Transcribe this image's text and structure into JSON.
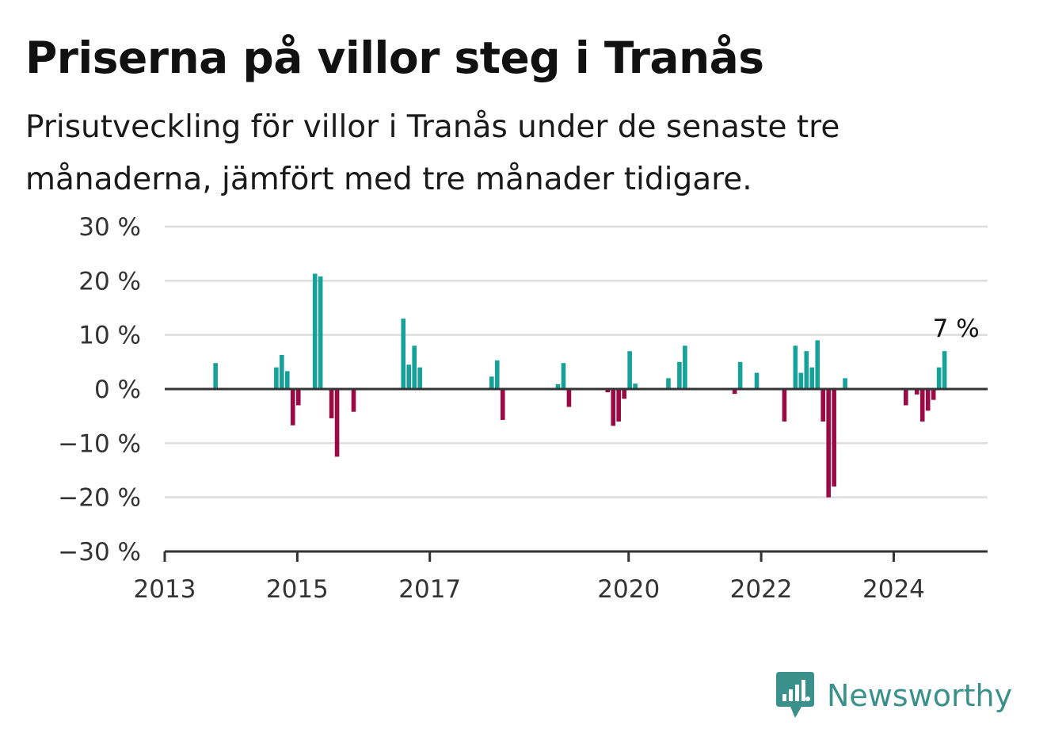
{
  "title": "Priserna på villor steg i Tranås",
  "subtitle": "Prisutveckling för villor i Tranås under de senaste tre månaderna, jämfört med tre månader tidigare.",
  "brand": {
    "name": "Newsworthy",
    "icon": "newsworthy-logo-icon",
    "color": "#3a918b"
  },
  "colors": {
    "positive": "#17a299",
    "negative": "#9b0a45",
    "grid": "#dddddd",
    "axis": "#333333"
  },
  "chart_data": {
    "type": "bar",
    "ylim": [
      -30,
      30
    ],
    "y_ticks": [
      {
        "value": 30,
        "label": "30 %"
      },
      {
        "value": 20,
        "label": "20 %"
      },
      {
        "value": 10,
        "label": "10 %"
      },
      {
        "value": 0,
        "label": "0 %"
      },
      {
        "value": -10,
        "label": "−10 %"
      },
      {
        "value": -20,
        "label": "−20 %"
      },
      {
        "value": -30,
        "label": "−30 %"
      }
    ],
    "xlim": [
      "2013-01",
      "2025-06"
    ],
    "x_ticks": [
      {
        "value": "2013-01",
        "label": "2013"
      },
      {
        "value": "2015-01",
        "label": "2015"
      },
      {
        "value": "2017-01",
        "label": "2017"
      },
      {
        "value": "2020-01",
        "label": "2020"
      },
      {
        "value": "2022-01",
        "label": "2022"
      },
      {
        "value": "2024-01",
        "label": "2024"
      }
    ],
    "grid": true,
    "annotation": {
      "x": "2024-12",
      "y": 7,
      "label": "7 %"
    },
    "series": [
      {
        "values": [
          {
            "x": "2013-10",
            "y": 4.8
          },
          {
            "x": "2014-09",
            "y": 4.0
          },
          {
            "x": "2014-10",
            "y": 6.3
          },
          {
            "x": "2014-11",
            "y": 3.3
          },
          {
            "x": "2014-12",
            "y": -6.7
          },
          {
            "x": "2015-01",
            "y": -3.0
          },
          {
            "x": "2015-04",
            "y": 21.3
          },
          {
            "x": "2015-05",
            "y": 20.8
          },
          {
            "x": "2015-07",
            "y": -5.4
          },
          {
            "x": "2015-08",
            "y": -12.5
          },
          {
            "x": "2015-11",
            "y": -4.2
          },
          {
            "x": "2016-08",
            "y": 13.0
          },
          {
            "x": "2016-09",
            "y": 4.5
          },
          {
            "x": "2016-10",
            "y": 8.0
          },
          {
            "x": "2016-11",
            "y": 4.0
          },
          {
            "x": "2017-12",
            "y": 2.3
          },
          {
            "x": "2018-01",
            "y": 5.3
          },
          {
            "x": "2018-02",
            "y": -5.7
          },
          {
            "x": "2018-12",
            "y": 0.9
          },
          {
            "x": "2019-01",
            "y": 4.8
          },
          {
            "x": "2019-02",
            "y": -3.3
          },
          {
            "x": "2019-09",
            "y": -0.6
          },
          {
            "x": "2019-10",
            "y": -6.8
          },
          {
            "x": "2019-11",
            "y": -6.0
          },
          {
            "x": "2019-12",
            "y": -1.8
          },
          {
            "x": "2020-01",
            "y": 7.0
          },
          {
            "x": "2020-02",
            "y": 1.0
          },
          {
            "x": "2020-08",
            "y": 2.0
          },
          {
            "x": "2020-10",
            "y": 5.0
          },
          {
            "x": "2020-11",
            "y": 8.0
          },
          {
            "x": "2021-08",
            "y": -0.9
          },
          {
            "x": "2021-09",
            "y": 5.0
          },
          {
            "x": "2021-12",
            "y": 3.0
          },
          {
            "x": "2022-05",
            "y": -6.0
          },
          {
            "x": "2022-07",
            "y": 8.0
          },
          {
            "x": "2022-08",
            "y": 3.0
          },
          {
            "x": "2022-09",
            "y": 7.0
          },
          {
            "x": "2022-10",
            "y": 4.0
          },
          {
            "x": "2022-11",
            "y": 9.0
          },
          {
            "x": "2022-12",
            "y": -6.0
          },
          {
            "x": "2023-01",
            "y": -20.0
          },
          {
            "x": "2023-02",
            "y": -18.0
          },
          {
            "x": "2023-04",
            "y": 2.0
          },
          {
            "x": "2024-03",
            "y": -3.0
          },
          {
            "x": "2024-05",
            "y": -1.0
          },
          {
            "x": "2024-06",
            "y": -6.0
          },
          {
            "x": "2024-07",
            "y": -4.0
          },
          {
            "x": "2024-08",
            "y": -2.0
          },
          {
            "x": "2024-09",
            "y": 4.0
          },
          {
            "x": "2024-10",
            "y": 7.0
          }
        ]
      }
    ]
  }
}
